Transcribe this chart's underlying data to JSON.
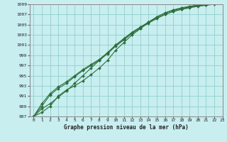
{
  "title": "Graphe pression niveau de la mer (hPa)",
  "bg_color": "#c8eef0",
  "grid_color": "#90d0cc",
  "line_color": "#2d6e3a",
  "marker_color": "#2d6e3a",
  "xlim": [
    -0.5,
    23
  ],
  "ylim": [
    987,
    1009
  ],
  "xticks": [
    0,
    1,
    2,
    3,
    4,
    5,
    6,
    7,
    8,
    9,
    10,
    11,
    12,
    13,
    14,
    15,
    16,
    17,
    18,
    19,
    20,
    21,
    22,
    23
  ],
  "yticks": [
    987,
    989,
    991,
    993,
    995,
    997,
    999,
    1001,
    1003,
    1005,
    1007,
    1009
  ],
  "series": [
    [
      987.0,
      988.5,
      989.5,
      990.8,
      992.0,
      993.5,
      995.0,
      996.5,
      998.0,
      999.5,
      1001.0,
      1002.2,
      1003.5,
      1004.5,
      1005.5,
      1006.5,
      1007.3,
      1007.8,
      1008.2,
      1008.5,
      1008.7,
      1008.9,
      1009.1,
      1009.3
    ],
    [
      987.0,
      989.5,
      991.5,
      992.8,
      993.8,
      995.0,
      996.2,
      997.2,
      998.2,
      999.5,
      1001.0,
      1002.3,
      1003.5,
      1004.5,
      1005.5,
      1006.3,
      1007.0,
      1007.6,
      1008.0,
      1008.3,
      1008.6,
      1008.8,
      1009.0,
      1009.2
    ],
    [
      987.0,
      989.0,
      991.2,
      992.5,
      993.5,
      994.8,
      996.0,
      997.0,
      998.0,
      999.3,
      1000.8,
      1002.0,
      1003.3,
      1004.3,
      1005.3,
      1006.2,
      1007.0,
      1007.6,
      1008.0,
      1008.4,
      1008.7,
      1008.9,
      1009.1,
      1009.3
    ],
    [
      987.0,
      987.8,
      989.0,
      991.0,
      992.2,
      993.0,
      994.0,
      995.2,
      996.5,
      998.0,
      1000.0,
      1001.5,
      1003.0,
      1004.2,
      1005.5,
      1006.5,
      1007.3,
      1007.9,
      1008.3,
      1008.6,
      1008.9,
      1009.1,
      1009.3,
      1009.4
    ]
  ]
}
